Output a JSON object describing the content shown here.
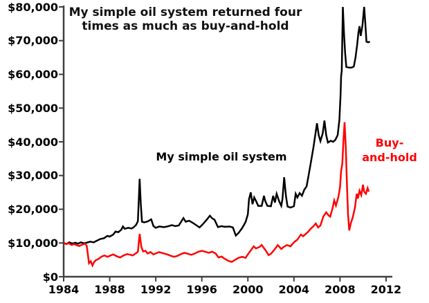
{
  "colors": {
    "background": "#ffffff",
    "axis": "#3f3f3f",
    "system_line": "#000000",
    "buyhold_line": "#ff0000",
    "text": "#000000"
  },
  "chart_data": {
    "type": "line",
    "title": "My simple oil system returned four times as much as buy-and-hold",
    "title_line1": "My simple oil system returned four",
    "title_line2": "times as much as buy-and-hold",
    "xlabel": "",
    "ylabel": "",
    "grid": false,
    "legend_position": "inline-annotations",
    "x_axis": {
      "min": 1984,
      "max": 2012.5,
      "ticks": [
        1984,
        1988,
        1992,
        1996,
        2000,
        2004,
        2008,
        2012
      ],
      "tick_labels": [
        "1984",
        "1988",
        "1992",
        "1996",
        "2000",
        "2004",
        "2008",
        "2012"
      ]
    },
    "y_axis": {
      "min": 0,
      "max": 80000,
      "ticks": [
        0,
        10000,
        20000,
        30000,
        40000,
        50000,
        60000,
        70000,
        80000
      ],
      "tick_labels": [
        "$0",
        "$10,000",
        "$20,000",
        "$30,000",
        "$40,000",
        "$50,000",
        "$60,000",
        "$70,000",
        "$80,000"
      ]
    },
    "annotations": {
      "system": {
        "lines": [
          "My simple oil system"
        ],
        "color": "#000000"
      },
      "buyhold": {
        "lines": [
          "Buy-",
          "and-hold"
        ],
        "color": "#ff0000"
      }
    },
    "series": [
      {
        "name": "My simple oil system",
        "color": "#000000",
        "points": [
          [
            1984.0,
            10000
          ],
          [
            1984.25,
            9700
          ],
          [
            1984.5,
            10200
          ],
          [
            1984.75,
            9800
          ],
          [
            1985.0,
            10100
          ],
          [
            1985.25,
            9800
          ],
          [
            1985.5,
            10200
          ],
          [
            1985.75,
            9900
          ],
          [
            1986.0,
            10100
          ],
          [
            1986.3,
            10400
          ],
          [
            1986.6,
            10200
          ],
          [
            1986.9,
            10700
          ],
          [
            1987.2,
            11200
          ],
          [
            1987.5,
            11400
          ],
          [
            1987.8,
            12100
          ],
          [
            1988.0,
            11900
          ],
          [
            1988.3,
            12500
          ],
          [
            1988.5,
            13400
          ],
          [
            1988.75,
            13200
          ],
          [
            1989.0,
            13900
          ],
          [
            1989.15,
            14900
          ],
          [
            1989.3,
            14200
          ],
          [
            1989.6,
            14500
          ],
          [
            1989.9,
            14300
          ],
          [
            1990.1,
            14700
          ],
          [
            1990.3,
            15400
          ],
          [
            1990.45,
            16500
          ],
          [
            1990.6,
            29000
          ],
          [
            1990.7,
            21500
          ],
          [
            1990.8,
            16300
          ],
          [
            1991.0,
            16100
          ],
          [
            1991.3,
            16400
          ],
          [
            1991.6,
            17000
          ],
          [
            1991.8,
            15000
          ],
          [
            1992.0,
            14500
          ],
          [
            1992.3,
            14900
          ],
          [
            1992.7,
            14700
          ],
          [
            1993.0,
            14900
          ],
          [
            1993.4,
            15300
          ],
          [
            1993.7,
            15000
          ],
          [
            1994.0,
            15200
          ],
          [
            1994.4,
            17400
          ],
          [
            1994.6,
            16300
          ],
          [
            1994.9,
            16600
          ],
          [
            1995.2,
            16000
          ],
          [
            1995.5,
            15300
          ],
          [
            1995.8,
            14600
          ],
          [
            1996.1,
            15600
          ],
          [
            1996.5,
            17200
          ],
          [
            1996.7,
            18100
          ],
          [
            1996.9,
            17300
          ],
          [
            1997.1,
            16900
          ],
          [
            1997.4,
            14700
          ],
          [
            1997.7,
            15000
          ],
          [
            1998.0,
            14800
          ],
          [
            1998.4,
            14900
          ],
          [
            1998.7,
            14600
          ],
          [
            1998.95,
            12200
          ],
          [
            1999.2,
            13000
          ],
          [
            1999.5,
            14400
          ],
          [
            1999.8,
            16200
          ],
          [
            2000.0,
            18500
          ],
          [
            2000.1,
            23000
          ],
          [
            2000.25,
            25000
          ],
          [
            2000.4,
            21500
          ],
          [
            2000.55,
            23500
          ],
          [
            2000.7,
            22500
          ],
          [
            2000.9,
            21000
          ],
          [
            2001.2,
            21000
          ],
          [
            2001.4,
            24000
          ],
          [
            2001.5,
            22500
          ],
          [
            2001.7,
            21000
          ],
          [
            2002.0,
            20900
          ],
          [
            2002.2,
            24000
          ],
          [
            2002.35,
            22000
          ],
          [
            2002.5,
            24600
          ],
          [
            2002.7,
            22500
          ],
          [
            2002.9,
            21000
          ],
          [
            2003.0,
            23000
          ],
          [
            2003.15,
            29500
          ],
          [
            2003.3,
            24000
          ],
          [
            2003.45,
            20800
          ],
          [
            2003.7,
            20500
          ],
          [
            2004.0,
            20900
          ],
          [
            2004.15,
            24600
          ],
          [
            2004.3,
            23500
          ],
          [
            2004.5,
            24800
          ],
          [
            2004.7,
            24000
          ],
          [
            2004.9,
            25800
          ],
          [
            2005.1,
            26800
          ],
          [
            2005.3,
            30500
          ],
          [
            2005.5,
            34500
          ],
          [
            2005.7,
            38500
          ],
          [
            2005.85,
            42000
          ],
          [
            2006.0,
            45500
          ],
          [
            2006.15,
            42000
          ],
          [
            2006.3,
            40200
          ],
          [
            2006.5,
            42500
          ],
          [
            2006.65,
            46300
          ],
          [
            2006.8,
            42000
          ],
          [
            2006.95,
            39800
          ],
          [
            2007.2,
            40300
          ],
          [
            2007.4,
            40000
          ],
          [
            2007.6,
            40600
          ],
          [
            2007.8,
            42000
          ],
          [
            2007.95,
            46500
          ],
          [
            2008.05,
            54000
          ],
          [
            2008.1,
            59500
          ],
          [
            2008.15,
            61000
          ],
          [
            2008.25,
            80000
          ],
          [
            2008.35,
            72000
          ],
          [
            2008.45,
            66300
          ],
          [
            2008.55,
            62200
          ],
          [
            2008.8,
            62000
          ],
          [
            2009.0,
            62000
          ],
          [
            2009.2,
            62300
          ],
          [
            2009.35,
            65000
          ],
          [
            2009.5,
            69000
          ],
          [
            2009.6,
            72400
          ],
          [
            2009.7,
            74300
          ],
          [
            2009.8,
            71400
          ],
          [
            2009.95,
            74500
          ],
          [
            2010.1,
            80000
          ],
          [
            2010.2,
            75000
          ],
          [
            2010.3,
            69700
          ],
          [
            2010.45,
            69500
          ],
          [
            2010.6,
            69700
          ]
        ]
      },
      {
        "name": "Buy-and-hold",
        "color": "#ff0000",
        "points": [
          [
            1984.0,
            10000
          ],
          [
            1984.2,
            9700
          ],
          [
            1984.45,
            9900
          ],
          [
            1984.7,
            9400
          ],
          [
            1984.9,
            9700
          ],
          [
            1985.1,
            9400
          ],
          [
            1985.35,
            9100
          ],
          [
            1985.6,
            9500
          ],
          [
            1985.85,
            9800
          ],
          [
            1986.0,
            9200
          ],
          [
            1986.1,
            6800
          ],
          [
            1986.2,
            4000
          ],
          [
            1986.35,
            4600
          ],
          [
            1986.5,
            3300
          ],
          [
            1986.65,
            4400
          ],
          [
            1986.8,
            4900
          ],
          [
            1987.0,
            5200
          ],
          [
            1987.3,
            6000
          ],
          [
            1987.55,
            6300
          ],
          [
            1987.8,
            5900
          ],
          [
            1988.0,
            6200
          ],
          [
            1988.3,
            6600
          ],
          [
            1988.6,
            6100
          ],
          [
            1988.9,
            5700
          ],
          [
            1989.2,
            6300
          ],
          [
            1989.5,
            6700
          ],
          [
            1989.8,
            6500
          ],
          [
            1990.0,
            6300
          ],
          [
            1990.3,
            7000
          ],
          [
            1990.45,
            7400
          ],
          [
            1990.6,
            12700
          ],
          [
            1990.75,
            8800
          ],
          [
            1990.9,
            7500
          ],
          [
            1991.1,
            7700
          ],
          [
            1991.3,
            6900
          ],
          [
            1991.55,
            7300
          ],
          [
            1991.8,
            6600
          ],
          [
            1992.0,
            6900
          ],
          [
            1992.3,
            7300
          ],
          [
            1992.6,
            7000
          ],
          [
            1993.0,
            6600
          ],
          [
            1993.3,
            6200
          ],
          [
            1993.6,
            5900
          ],
          [
            1993.9,
            6200
          ],
          [
            1994.2,
            6700
          ],
          [
            1994.5,
            7100
          ],
          [
            1994.8,
            6800
          ],
          [
            1995.1,
            6500
          ],
          [
            1995.4,
            6900
          ],
          [
            1995.7,
            7400
          ],
          [
            1996.0,
            7700
          ],
          [
            1996.3,
            7400
          ],
          [
            1996.6,
            7100
          ],
          [
            1996.9,
            7400
          ],
          [
            1997.2,
            6900
          ],
          [
            1997.45,
            5700
          ],
          [
            1997.7,
            6000
          ],
          [
            1998.0,
            5300
          ],
          [
            1998.3,
            4700
          ],
          [
            1998.6,
            4400
          ],
          [
            1998.9,
            5000
          ],
          [
            1999.2,
            5600
          ],
          [
            1999.5,
            5900
          ],
          [
            1999.8,
            5600
          ],
          [
            2000.0,
            6600
          ],
          [
            2000.3,
            8000
          ],
          [
            2000.5,
            9000
          ],
          [
            2000.7,
            8400
          ],
          [
            2001.0,
            8800
          ],
          [
            2001.2,
            9400
          ],
          [
            2001.5,
            8000
          ],
          [
            2001.8,
            6400
          ],
          [
            2002.0,
            6800
          ],
          [
            2002.3,
            8000
          ],
          [
            2002.6,
            9400
          ],
          [
            2002.9,
            8200
          ],
          [
            2003.1,
            8800
          ],
          [
            2003.4,
            9400
          ],
          [
            2003.7,
            9000
          ],
          [
            2004.0,
            10200
          ],
          [
            2004.3,
            11000
          ],
          [
            2004.6,
            12500
          ],
          [
            2004.8,
            12000
          ],
          [
            2005.0,
            12600
          ],
          [
            2005.2,
            13200
          ],
          [
            2005.45,
            14200
          ],
          [
            2005.7,
            15000
          ],
          [
            2005.9,
            15800
          ],
          [
            2006.1,
            14600
          ],
          [
            2006.3,
            15200
          ],
          [
            2006.55,
            17800
          ],
          [
            2006.8,
            19100
          ],
          [
            2007.0,
            18200
          ],
          [
            2007.15,
            17800
          ],
          [
            2007.35,
            20200
          ],
          [
            2007.5,
            22600
          ],
          [
            2007.65,
            21100
          ],
          [
            2007.85,
            23500
          ],
          [
            2008.0,
            26500
          ],
          [
            2008.1,
            31400
          ],
          [
            2008.2,
            33500
          ],
          [
            2008.3,
            40500
          ],
          [
            2008.4,
            45800
          ],
          [
            2008.5,
            38500
          ],
          [
            2008.6,
            28000
          ],
          [
            2008.7,
            18500
          ],
          [
            2008.8,
            13700
          ],
          [
            2008.95,
            16000
          ],
          [
            2009.1,
            17500
          ],
          [
            2009.3,
            20500
          ],
          [
            2009.45,
            24600
          ],
          [
            2009.55,
            23200
          ],
          [
            2009.7,
            25500
          ],
          [
            2009.85,
            24200
          ],
          [
            2010.0,
            27300
          ],
          [
            2010.1,
            25200
          ],
          [
            2010.25,
            24600
          ],
          [
            2010.4,
            26300
          ],
          [
            2010.5,
            25200
          ]
        ]
      }
    ]
  }
}
